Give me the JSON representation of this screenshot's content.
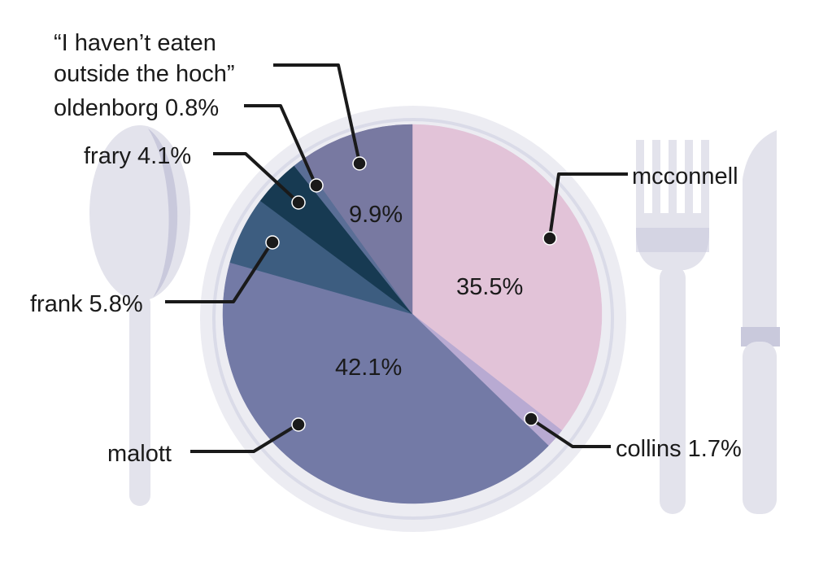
{
  "chart_data": {
    "type": "pie",
    "title": "",
    "start": "12 o'clock",
    "direction": "clockwise",
    "slices": [
      {
        "label": "mcconnell",
        "value": 35.5,
        "value_label": "35.5%",
        "color": "#e2c3d8"
      },
      {
        "label": "collins",
        "value": 1.7,
        "value_label": "collins 1.7%",
        "color": "#b8aad2"
      },
      {
        "label": "malott",
        "value": 42.1,
        "value_label": "42.1%",
        "color": "#737aa6"
      },
      {
        "label": "frank",
        "value": 5.8,
        "value_label": "frank 5.8%",
        "color": "#3d5d80"
      },
      {
        "label": "frary",
        "value": 4.1,
        "value_label": "frary 4.1%",
        "color": "#173a52"
      },
      {
        "label": "oldenborg",
        "value": 0.8,
        "value_label": "oldenborg 0.8%",
        "color": "#5a6e96"
      },
      {
        "label": "“I haven’t eaten outside the hoch”",
        "value": 9.9,
        "value_label": "9.9%",
        "color": "#7879a1"
      }
    ]
  },
  "labels": {
    "quote_line1": "“I haven’t eaten",
    "quote_line2": "outside the hoch”",
    "oldenborg": "oldenborg 0.8%",
    "frary": "frary 4.1%",
    "frank": "frank 5.8%",
    "malott": "malott",
    "mcconnell": "mcconnell",
    "collins": "collins 1.7%",
    "pct_hoch": "9.9%",
    "pct_mcconnell": "35.5%",
    "pct_malott": "42.1%"
  },
  "decor": {
    "plate_color": "#ececf2",
    "plate_rim_color": "#dadbe8",
    "cutlery_color": "#e3e3ec",
    "cutlery_shadow_color": "#c9c9dc",
    "leader_color": "#1a1a1a"
  }
}
